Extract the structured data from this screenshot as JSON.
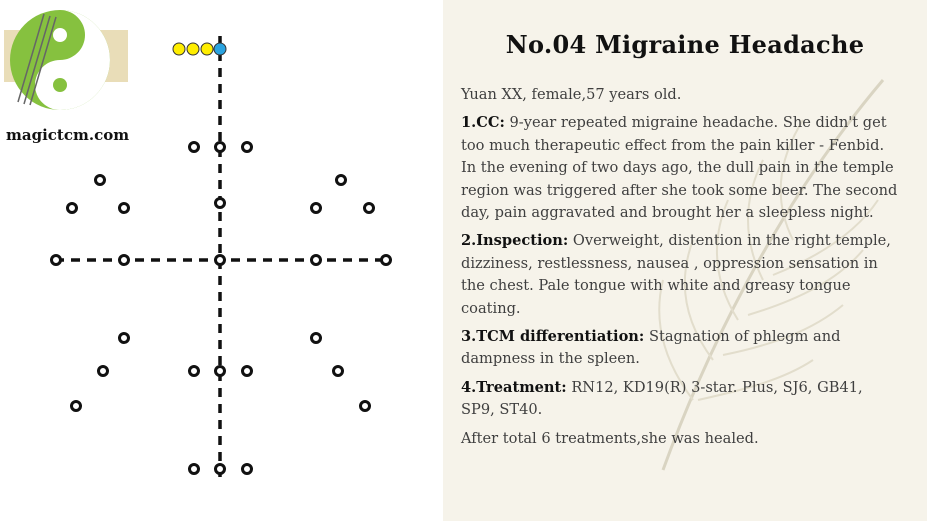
{
  "site": "magictcm.com",
  "case": {
    "title": "No.04 Migraine Headache",
    "patient": "Yuan XX, female,57 years old.",
    "sections": [
      {
        "label": "1.CC:",
        "text": "9-year repeated migraine headache. She didn't get too much therapeutic effect from the pain killer - Fenbid. In the evening of two days ago, the dull pain in the temple region was triggered after she took some beer. The second day,  pain aggravated and brought her a sleepless night."
      },
      {
        "label": "2.Inspection:",
        "text": "Overweight, distention in the right temple, dizziness, restlessness, nausea , oppression sensation in the chest. Pale tongue with white and greasy tongue coating."
      },
      {
        "label": "3.TCM differentiation:",
        "text": "Stagnation of phlegm and dampness in the spleen."
      },
      {
        "label": "4.Treatment:",
        "text": "RN12, KD19(R) 3-star. Plus, SJ6, GB41, SP9, ST40."
      }
    ],
    "outcome": "After total 6 treatments,she was healed."
  },
  "colors": {
    "accent_yellow": "#ffee00",
    "accent_blue": "#2aa3e0",
    "logo_green": "#86c13f"
  }
}
